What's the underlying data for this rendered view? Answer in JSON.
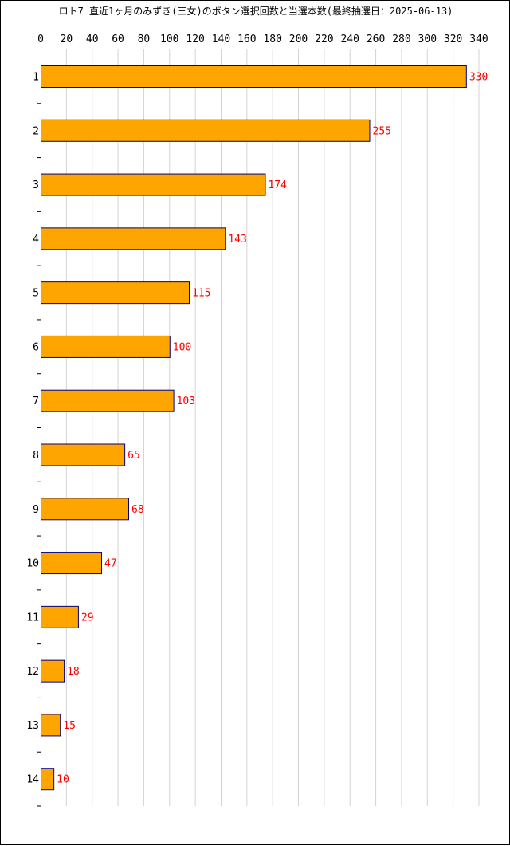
{
  "chart_data": {
    "type": "bar",
    "orientation": "horizontal",
    "title": "ロト7 直近1ヶ月のみずき(三女)のボタン選択回数と当選本数(最終抽選日：2025-06-13)",
    "categories": [
      "1",
      "2",
      "3",
      "4",
      "5",
      "6",
      "7",
      "8",
      "9",
      "10",
      "11",
      "12",
      "13",
      "14"
    ],
    "values": [
      330,
      255,
      174,
      143,
      115,
      100,
      103,
      65,
      68,
      47,
      29,
      18,
      15,
      10
    ],
    "xlim": [
      0,
      340
    ],
    "xticks": [
      0,
      20,
      40,
      60,
      80,
      100,
      120,
      140,
      160,
      180,
      200,
      220,
      240,
      260,
      280,
      300,
      320,
      340
    ],
    "xlabel": "",
    "ylabel": "",
    "grid": "vertical",
    "x_axis_position": "top",
    "colors": {
      "bar_fill": "#FFA500",
      "bar_stroke": "#000080",
      "value_label": "#FF0000",
      "grid": "#D3D3D3",
      "axis": "#000000"
    }
  }
}
